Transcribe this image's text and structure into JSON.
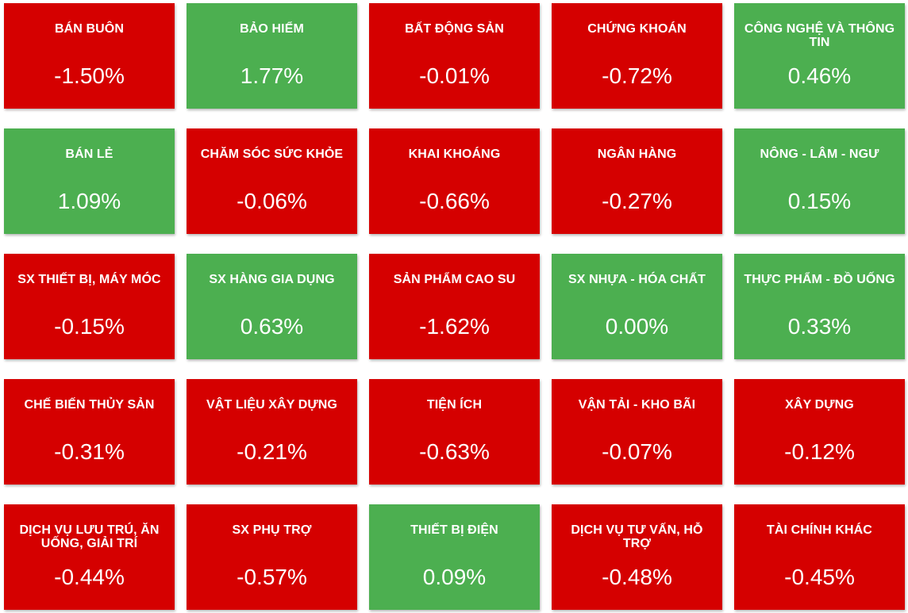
{
  "colors": {
    "up": "#4caf50",
    "down": "#d50000",
    "text": "#ffffff"
  },
  "sectors": [
    {
      "name": "BÁN BUÔN",
      "change": "-1.50%",
      "trend": "down"
    },
    {
      "name": "BẢO HIỂM",
      "change": "1.77%",
      "trend": "up"
    },
    {
      "name": "BẤT ĐỘNG SẢN",
      "change": "-0.01%",
      "trend": "down"
    },
    {
      "name": "CHỨNG KHOÁN",
      "change": "-0.72%",
      "trend": "down"
    },
    {
      "name": "CÔNG NGHỆ VÀ THÔNG TIN",
      "change": "0.46%",
      "trend": "up"
    },
    {
      "name": "BÁN LẺ",
      "change": "1.09%",
      "trend": "up"
    },
    {
      "name": "CHĂM SÓC SỨC KHỎE",
      "change": "-0.06%",
      "trend": "down"
    },
    {
      "name": "KHAI KHOÁNG",
      "change": "-0.66%",
      "trend": "down"
    },
    {
      "name": "NGÂN HÀNG",
      "change": "-0.27%",
      "trend": "down"
    },
    {
      "name": "NÔNG - LÂM - NGƯ",
      "change": "0.15%",
      "trend": "up"
    },
    {
      "name": "SX THIẾT BỊ, MÁY MÓC",
      "change": "-0.15%",
      "trend": "down"
    },
    {
      "name": "SX HÀNG GIA DỤNG",
      "change": "0.63%",
      "trend": "up"
    },
    {
      "name": "SẢN PHẨM CAO SU",
      "change": "-1.62%",
      "trend": "down"
    },
    {
      "name": "SX NHỰA - HÓA CHẤT",
      "change": "0.00%",
      "trend": "up"
    },
    {
      "name": "THỰC PHẨM - ĐỒ UỐNG",
      "change": "0.33%",
      "trend": "up"
    },
    {
      "name": "CHẾ BIẾN THỦY SẢN",
      "change": "-0.31%",
      "trend": "down"
    },
    {
      "name": "VẬT LIỆU XÂY DỰNG",
      "change": "-0.21%",
      "trend": "down"
    },
    {
      "name": "TIỆN ÍCH",
      "change": "-0.63%",
      "trend": "down"
    },
    {
      "name": "VẬN TẢI - KHO BÃI",
      "change": "-0.07%",
      "trend": "down"
    },
    {
      "name": "XÂY DỰNG",
      "change": "-0.12%",
      "trend": "down"
    },
    {
      "name": "DỊCH VỤ LƯU TRÚ, ĂN UỐNG, GIẢI TRÍ",
      "change": "-0.44%",
      "trend": "down"
    },
    {
      "name": "SX PHỤ TRỢ",
      "change": "-0.57%",
      "trend": "down"
    },
    {
      "name": "THIẾT BỊ ĐIỆN",
      "change": "0.09%",
      "trend": "up"
    },
    {
      "name": "DỊCH VỤ TƯ VẤN, HỖ TRỢ",
      "change": "-0.48%",
      "trend": "down"
    },
    {
      "name": "TÀI CHÍNH KHÁC",
      "change": "-0.45%",
      "trend": "down"
    }
  ]
}
